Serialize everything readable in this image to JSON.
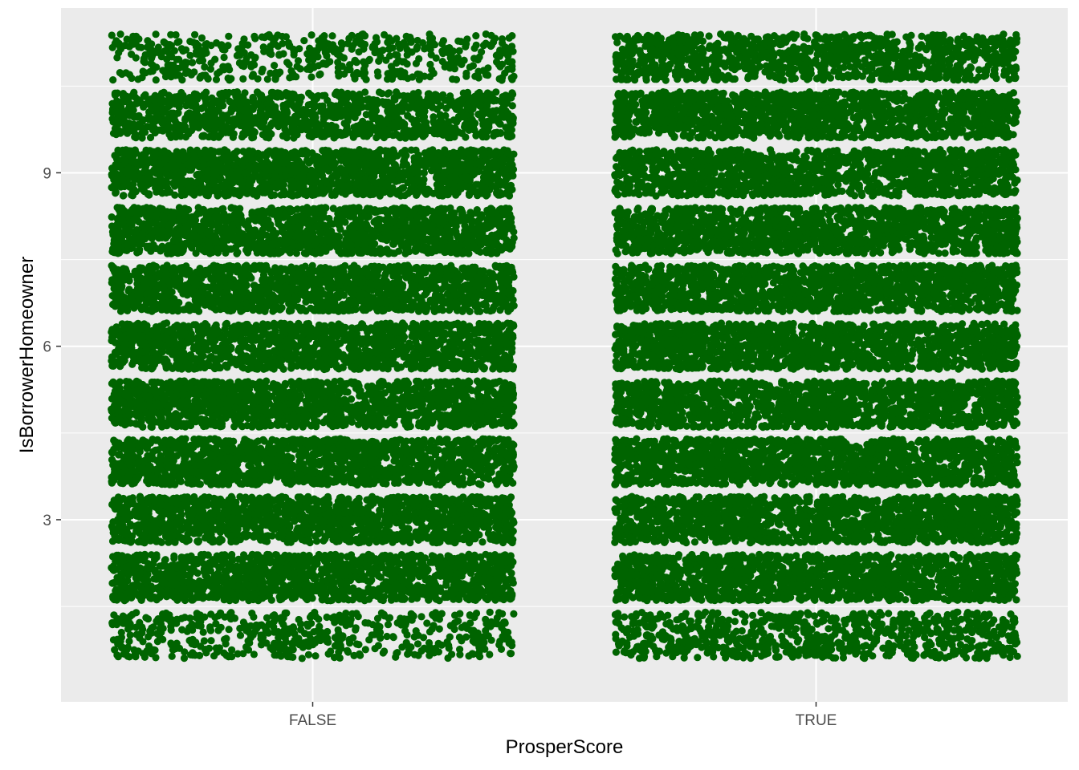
{
  "chart_data": {
    "type": "scatter",
    "jitter": true,
    "xlabel": "ProsperScore",
    "ylabel": "IsBorrowerHomeowner",
    "categories": [
      "FALSE",
      "TRUE"
    ],
    "y_levels": [
      1,
      2,
      3,
      4,
      5,
      6,
      7,
      8,
      9,
      10,
      11
    ],
    "y_ticks": [
      3,
      6,
      9
    ],
    "y_tick_labels": [
      "3",
      "6",
      "9"
    ],
    "ylim": [
      -0.15,
      11.85
    ],
    "grid": true,
    "legend": "none",
    "colors": {
      "points": "#006400",
      "panel": "#ebebeb",
      "grid": "#ffffff",
      "background": "#ffffff"
    },
    "density_by_category": {
      "FALSE": [
        0.35,
        1,
        1,
        1,
        1,
        1,
        1,
        1,
        1,
        0.8,
        0.35
      ],
      "TRUE": [
        0.55,
        1,
        1,
        1,
        1,
        1,
        1,
        1,
        1,
        1,
        0.75
      ]
    }
  }
}
